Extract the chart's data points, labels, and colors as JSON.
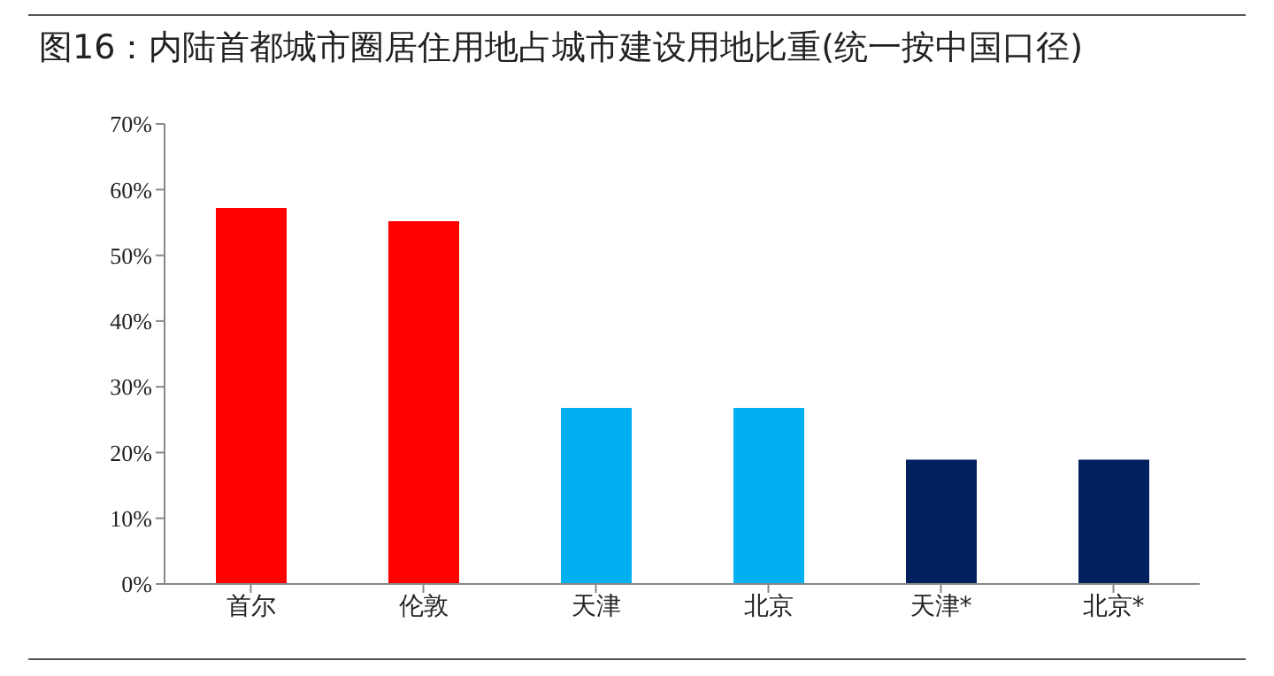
{
  "chart_data": {
    "type": "bar",
    "title": "图16：内陆首都城市圈居住用地占城市建设用地比重(统一按中国口径)",
    "categories": [
      "首尔",
      "伦敦",
      "天津",
      "北京",
      "天津*",
      "北京*"
    ],
    "values": [
      57.2,
      55.2,
      26.8,
      26.8,
      18.9,
      18.9
    ],
    "colors": [
      "#ff0000",
      "#ff0000",
      "#00b0f0",
      "#00b0f0",
      "#002060",
      "#002060"
    ],
    "ylim": [
      0,
      70
    ],
    "yticks": [
      {
        "value": 0,
        "label": "0%"
      },
      {
        "value": 10,
        "label": "10%"
      },
      {
        "value": 20,
        "label": "20%"
      },
      {
        "value": 30,
        "label": "30%"
      },
      {
        "value": 40,
        "label": "40%"
      },
      {
        "value": 50,
        "label": "50%"
      },
      {
        "value": 60,
        "label": "60%"
      },
      {
        "value": 70,
        "label": "70%"
      }
    ],
    "grid": false,
    "legend": false
  }
}
